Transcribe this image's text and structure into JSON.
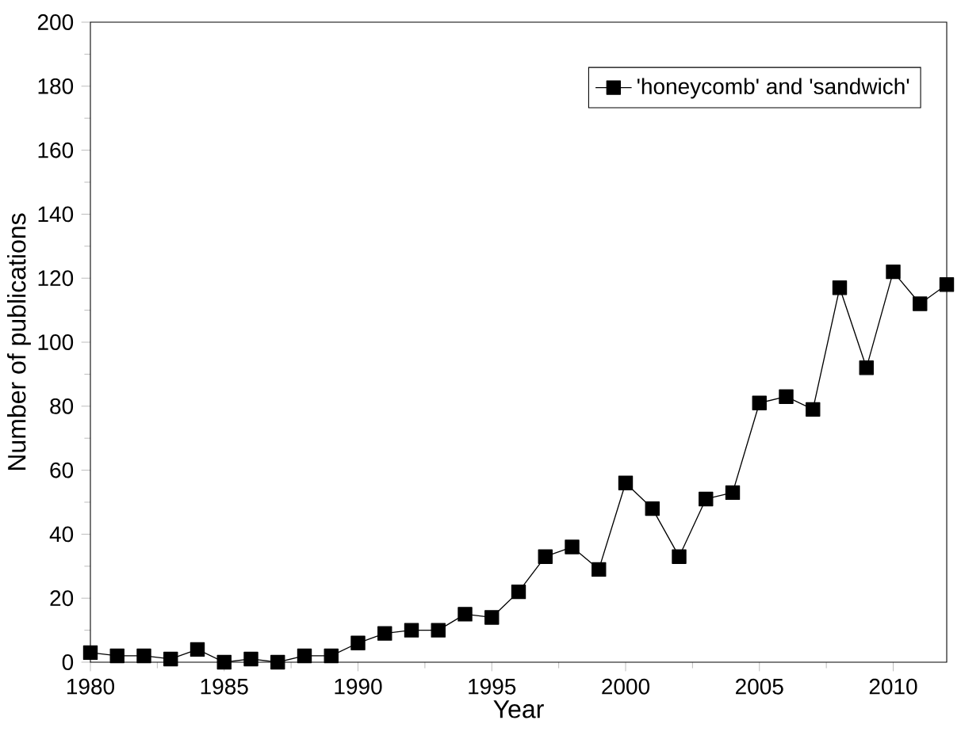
{
  "chart_data": {
    "type": "line",
    "xlabel": "Year",
    "ylabel": "Number of publications",
    "x": [
      1980,
      1981,
      1982,
      1983,
      1984,
      1985,
      1986,
      1987,
      1988,
      1989,
      1990,
      1991,
      1992,
      1993,
      1994,
      1995,
      1996,
      1997,
      1998,
      1999,
      2000,
      2001,
      2002,
      2003,
      2004,
      2005,
      2006,
      2007,
      2008,
      2009,
      2010,
      2011,
      2012
    ],
    "series": [
      {
        "name": "'honeycomb' and 'sandwich'",
        "color": "#000000",
        "values": [
          3,
          2,
          2,
          1,
          4,
          0,
          1,
          0,
          2,
          2,
          6,
          9,
          10,
          10,
          15,
          14,
          22,
          33,
          36,
          29,
          56,
          48,
          33,
          51,
          53,
          81,
          83,
          79,
          117,
          92,
          122,
          112,
          118
        ]
      }
    ],
    "xlim": [
      1980,
      2012
    ],
    "xticks": [
      1980,
      1985,
      1990,
      1995,
      2000,
      2005,
      2010
    ],
    "ylim": [
      0,
      200
    ],
    "yticks": [
      0,
      20,
      40,
      60,
      80,
      100,
      120,
      140,
      160,
      180,
      200
    ],
    "legend": "top right",
    "marker": "square",
    "line_style": "solid",
    "grid": false
  }
}
